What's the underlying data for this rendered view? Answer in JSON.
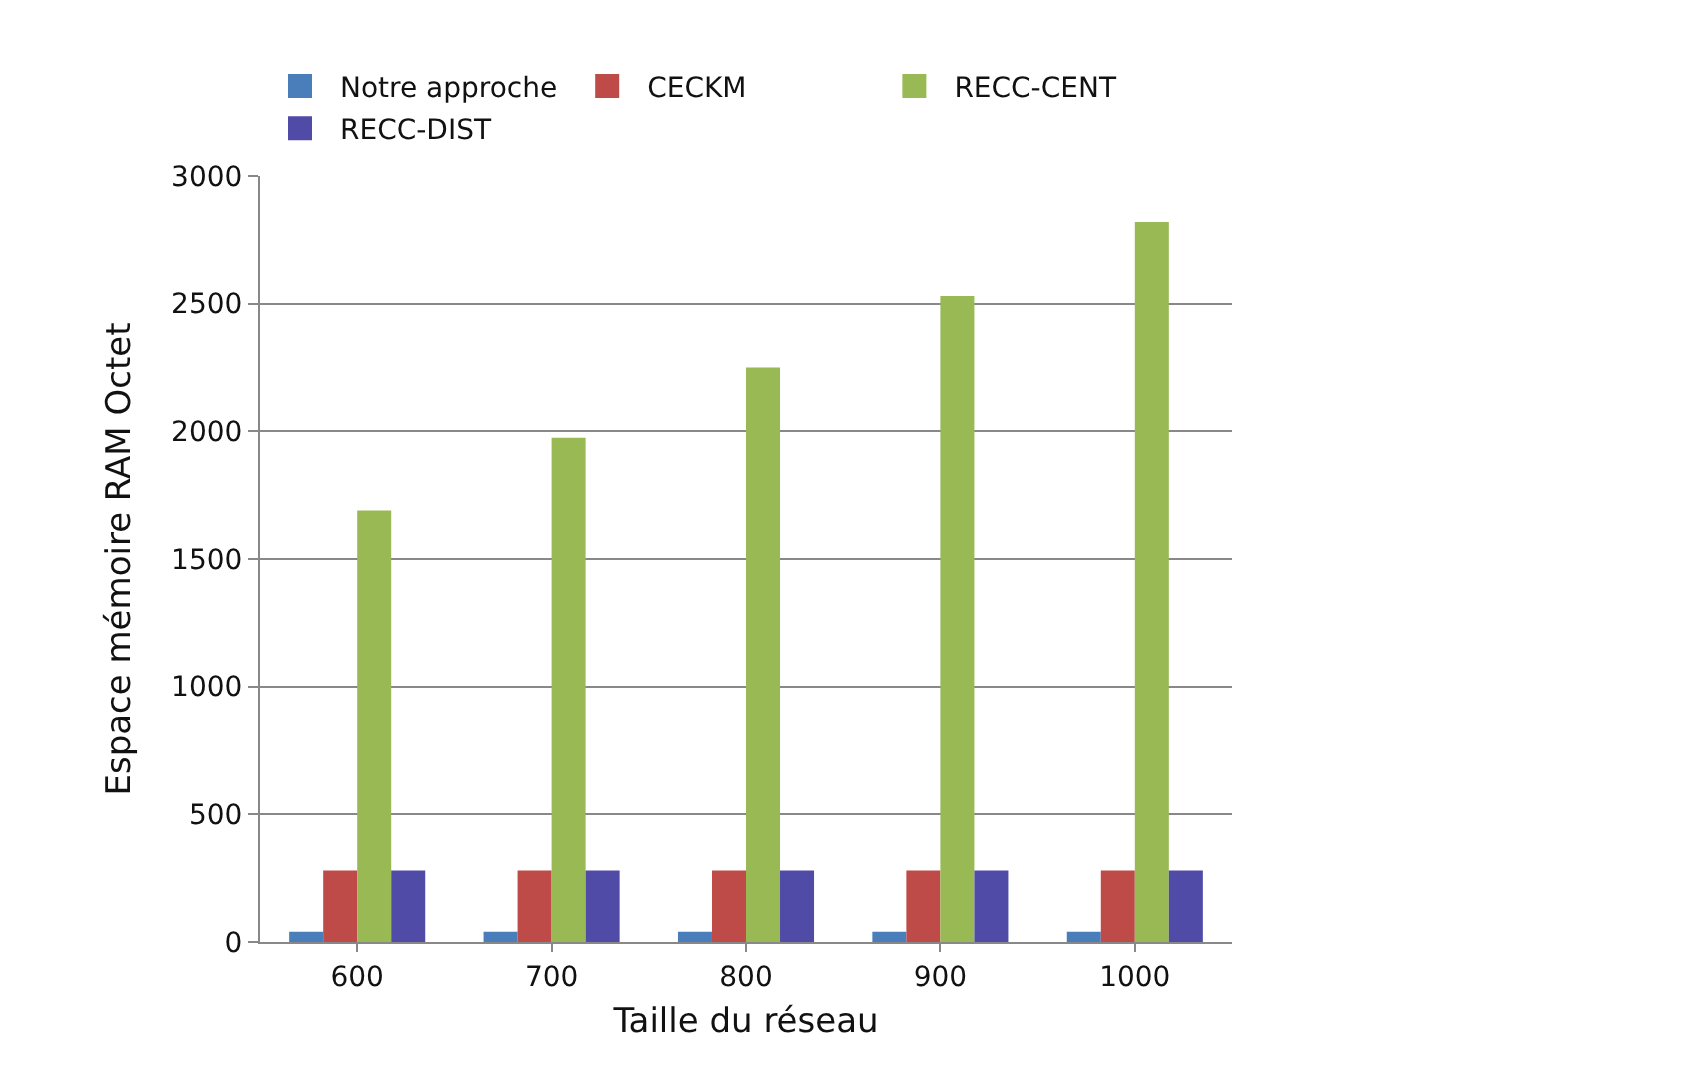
{
  "chart_data": {
    "type": "bar",
    "xlabel": "Taille du réseau",
    "ylabel": "Espace mémoire RAM Octet",
    "categories": [
      "600",
      "700",
      "800",
      "900",
      "1000"
    ],
    "series": [
      {
        "name": "Notre approche",
        "color": "#4a7ebb",
        "values": [
          40,
          40,
          40,
          40,
          40
        ]
      },
      {
        "name": "CECKM",
        "color": "#be4b48",
        "values": [
          280,
          280,
          280,
          280,
          280
        ]
      },
      {
        "name": "RECC-CENT",
        "color": "#98b954",
        "values": [
          1690,
          1975,
          2250,
          2530,
          2820
        ]
      },
      {
        "name": "RECC-DIST",
        "color": "#4f4ba6",
        "values": [
          280,
          280,
          280,
          280,
          280
        ]
      }
    ],
    "ylim": [
      0,
      3000
    ],
    "yticks": [
      0,
      500,
      1000,
      1500,
      2000,
      2500,
      3000
    ],
    "grid": "y",
    "legend": "top"
  }
}
